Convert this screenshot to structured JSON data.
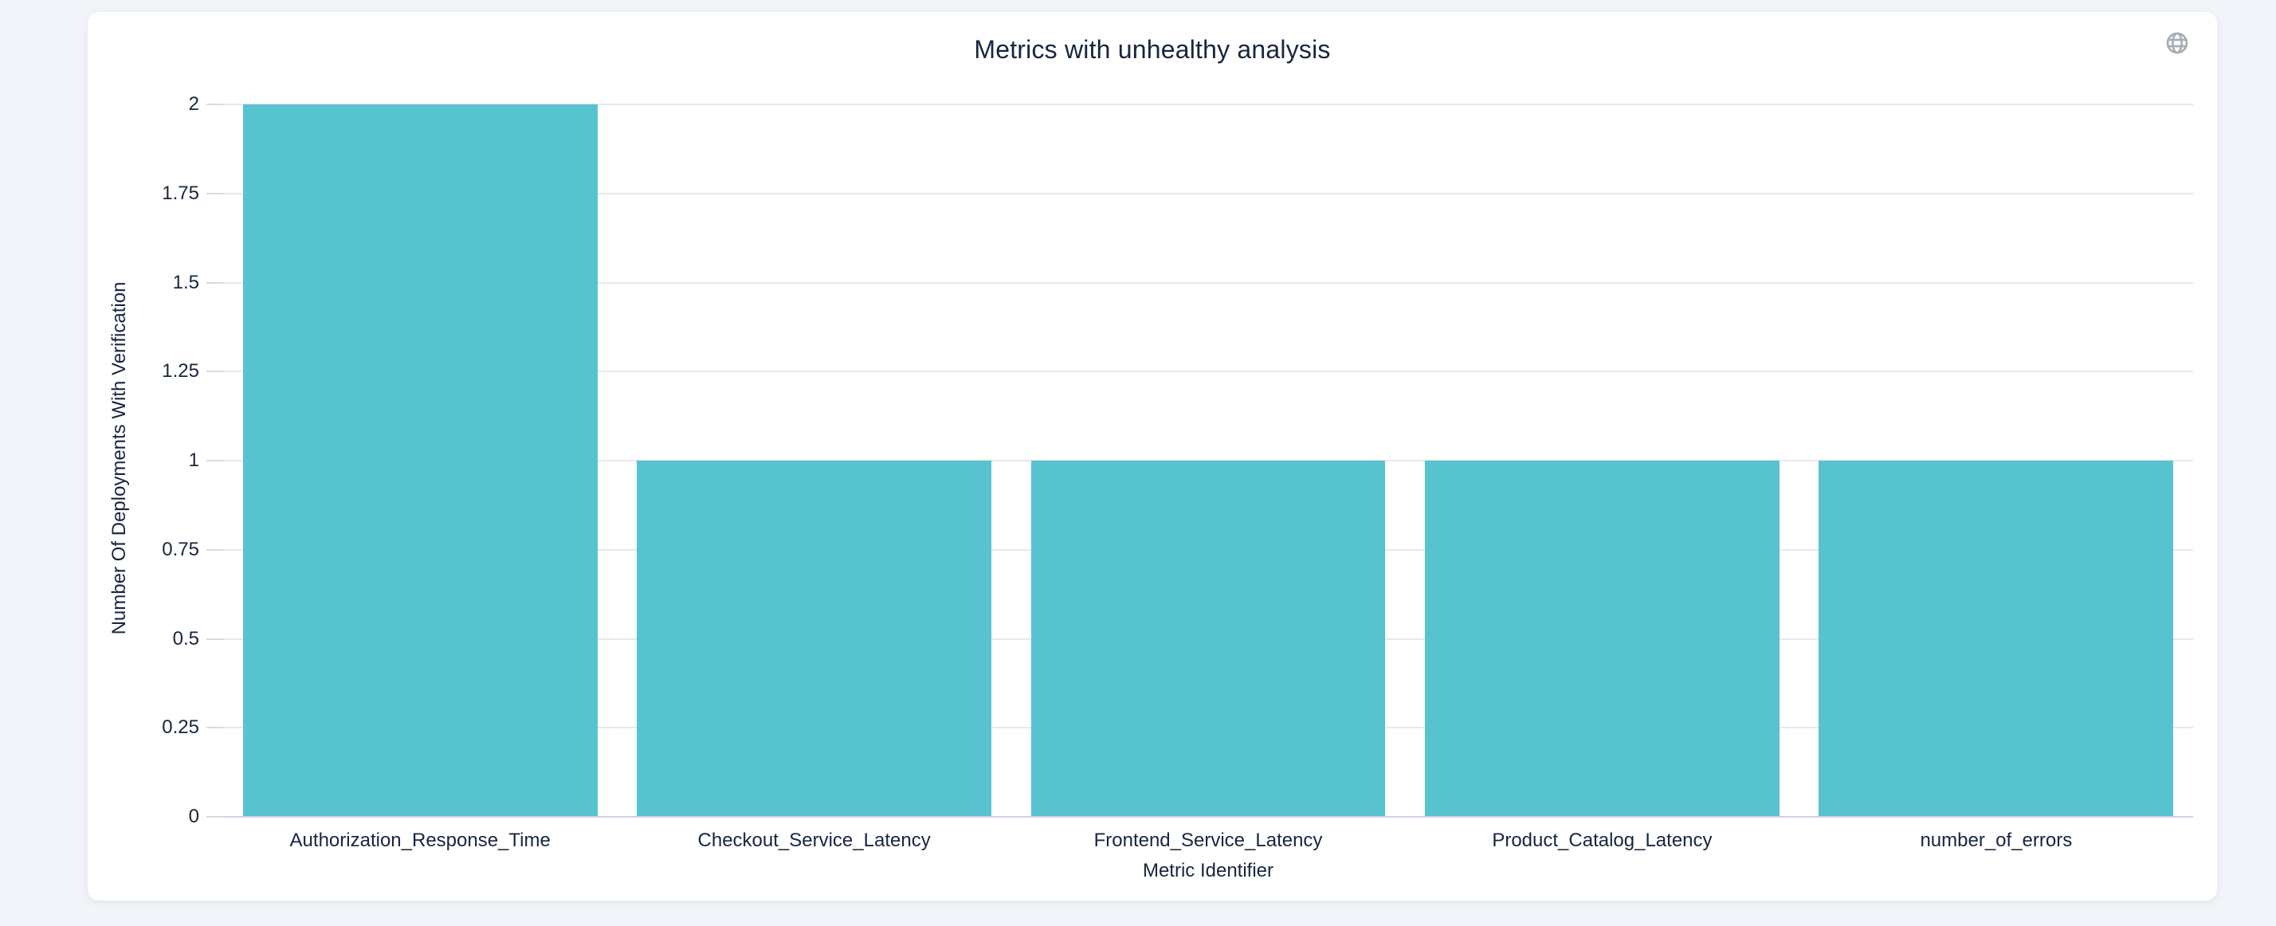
{
  "page": {
    "background_color": "#f1f4f8",
    "card_background_color": "#ffffff",
    "text_color": "#16263e"
  },
  "icons": {
    "top_right": "globe-icon",
    "color": "#a7adb8"
  },
  "chart_data": {
    "type": "bar",
    "title": "Metrics with unhealthy analysis",
    "categories": [
      "Authorization_Response_Time",
      "Checkout_Service_Latency",
      "Frontend_Service_Latency",
      "Product_Catalog_Latency",
      "number_of_errors"
    ],
    "values": [
      2,
      1,
      1,
      1,
      1
    ],
    "xlabel": "Metric Identifier",
    "ylabel": "Number Of Deployments With Verification",
    "ylim": [
      0,
      2
    ],
    "yticks": [
      "0",
      "0.25",
      "0.5",
      "0.75",
      "1",
      "1.25",
      "1.5",
      "1.75",
      "2"
    ],
    "bar_color": "#57c3ce",
    "gridline_color": "#e8e8e8",
    "axis_line_color": "#ccd4e6",
    "grid": true,
    "legend": false
  }
}
